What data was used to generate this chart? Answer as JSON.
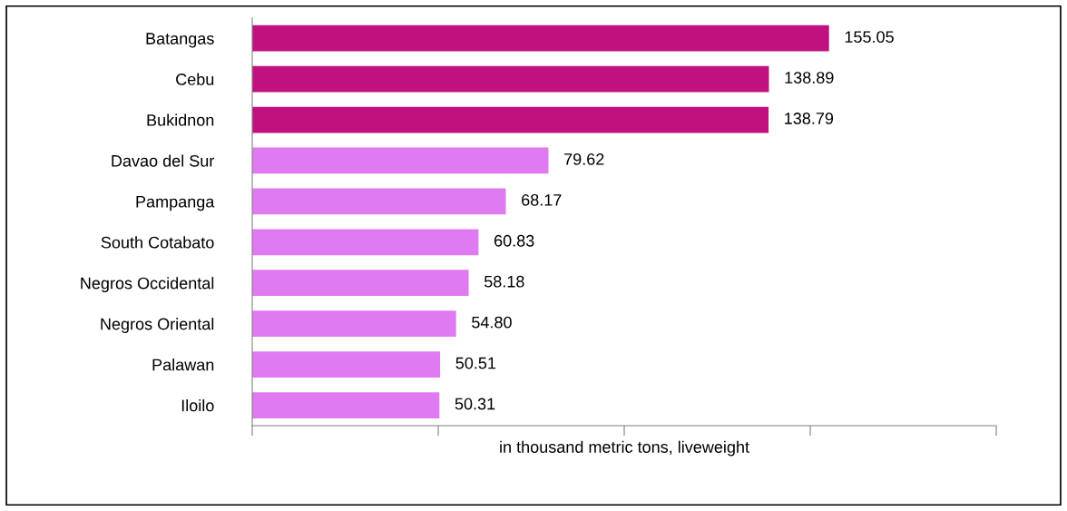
{
  "chart_data": {
    "type": "bar",
    "orientation": "horizontal",
    "xlabel": "in thousand metric tons, liveweight",
    "categories": [
      "Batangas",
      "Cebu",
      "Bukidnon",
      "Davao del Sur",
      "Pampanga",
      "South Cotabato",
      "Negros Occidental",
      "Negros Oriental",
      "Palawan",
      "Iloilo"
    ],
    "values": [
      155.05,
      138.89,
      138.79,
      79.62,
      68.17,
      60.83,
      58.18,
      54.8,
      50.51,
      50.31
    ],
    "value_labels": [
      "155.05",
      "138.89",
      "138.79",
      "79.62",
      "68.17",
      "60.83",
      "58.18",
      "54.80",
      "50.51",
      "50.31"
    ],
    "colors": [
      "#c0117e",
      "#c0117e",
      "#c0117e",
      "#e07af0",
      "#e07af0",
      "#e07af0",
      "#e07af0",
      "#e07af0",
      "#e07af0",
      "#e07af0"
    ],
    "xlim": [
      0,
      200
    ],
    "xticks": [
      {
        "value": 0,
        "label": null
      },
      {
        "value": 50,
        "label": null
      },
      {
        "value": 100,
        "label": null
      },
      {
        "value": 150,
        "label": null
      },
      {
        "value": 200,
        "label": null
      }
    ],
    "tick_labels": "y",
    "grid": false,
    "legend": false
  }
}
